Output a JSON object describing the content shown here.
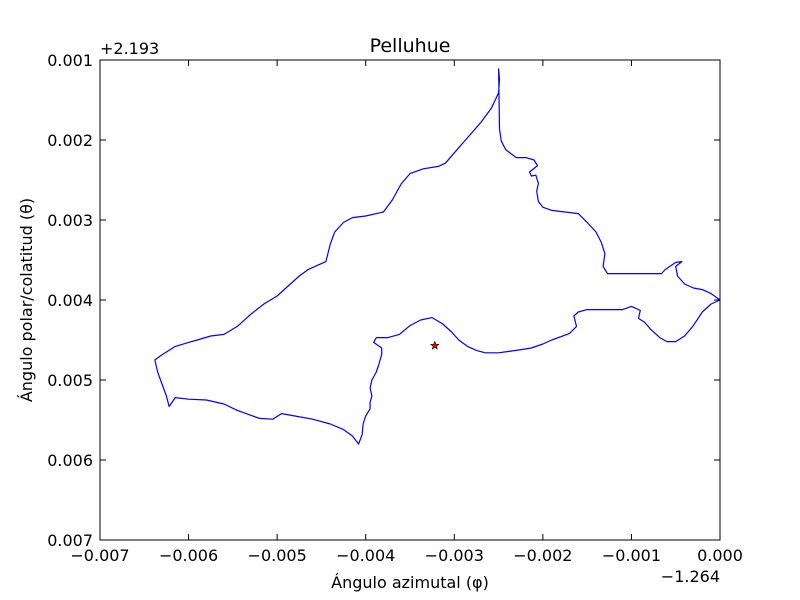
{
  "chart_data": {
    "type": "line",
    "title": "Pelluhue",
    "xlabel": "Ángulo azimutal (φ)",
    "ylabel": "Ángulo polar/colatitud (θ)",
    "x_offset_label": "−1.264",
    "y_offset_label": "+2.193",
    "xlim": [
      -0.007,
      0.0
    ],
    "ylim": [
      0.001,
      0.007
    ],
    "y_inverted": true,
    "grid": false,
    "x_ticks": [
      -0.007,
      -0.006,
      -0.005,
      -0.004,
      -0.003,
      -0.002,
      -0.001,
      0.0
    ],
    "x_tick_labels": [
      "−0.007",
      "−0.006",
      "−0.005",
      "−0.004",
      "−0.003",
      "−0.002",
      "−0.001",
      "0.000"
    ],
    "y_ticks": [
      0.001,
      0.002,
      0.003,
      0.004,
      0.005,
      0.006,
      0.007
    ],
    "y_tick_labels": [
      "0.001",
      "0.002",
      "0.003",
      "0.004",
      "0.005",
      "0.006",
      "0.007"
    ],
    "series": [
      {
        "color": "#0000ff",
        "closed": true,
        "points": [
          [
            -0.00249,
            0.00186
          ],
          [
            -0.00247,
            0.00201
          ],
          [
            -0.00242,
            0.00212
          ],
          [
            -0.0023,
            0.00222
          ],
          [
            -0.00219,
            0.00222
          ],
          [
            -0.0021,
            0.00225
          ],
          [
            -0.00206,
            0.00232
          ],
          [
            -0.00215,
            0.0024
          ],
          [
            -0.00213,
            0.00245
          ],
          [
            -0.00208,
            0.00244
          ],
          [
            -0.00205,
            0.00254
          ],
          [
            -0.00207,
            0.00264
          ],
          [
            -0.00205,
            0.00277
          ],
          [
            -0.002,
            0.00284
          ],
          [
            -0.0019,
            0.00288
          ],
          [
            -0.00175,
            0.0029
          ],
          [
            -0.0016,
            0.00292
          ],
          [
            -0.0015,
            0.00303
          ],
          [
            -0.0014,
            0.00315
          ],
          [
            -0.00134,
            0.00328
          ],
          [
            -0.0013,
            0.00342
          ],
          [
            -0.00132,
            0.00358
          ],
          [
            -0.00127,
            0.00367
          ],
          [
            -0.001,
            0.00367
          ],
          [
            -0.0008,
            0.00367
          ],
          [
            -0.00066,
            0.00367
          ],
          [
            -0.00062,
            0.00362
          ],
          [
            -0.0005,
            0.00353
          ],
          [
            -0.00043,
            0.00352
          ],
          [
            -0.0005,
            0.00358
          ],
          [
            -0.00048,
            0.0037
          ],
          [
            -0.0004,
            0.0038
          ],
          [
            -0.0003,
            0.00385
          ],
          [
            -0.0002,
            0.00387
          ],
          [
            -0.0001,
            0.00392
          ],
          [
            0.0,
            0.004
          ],
          [
            -0.0001,
            0.00405
          ],
          [
            -0.0002,
            0.00415
          ],
          [
            -0.0003,
            0.00432
          ],
          [
            -0.0004,
            0.00445
          ],
          [
            -0.0005,
            0.00452
          ],
          [
            -0.0006,
            0.00452
          ],
          [
            -0.00068,
            0.00447
          ],
          [
            -0.00078,
            0.00437
          ],
          [
            -0.00085,
            0.00428
          ],
          [
            -0.00092,
            0.00423
          ],
          [
            -0.0009,
            0.00413
          ],
          [
            -0.001,
            0.00408
          ],
          [
            -0.0011,
            0.00412
          ],
          [
            -0.00125,
            0.00412
          ],
          [
            -0.00135,
            0.00412
          ],
          [
            -0.0015,
            0.00412
          ],
          [
            -0.0016,
            0.00415
          ],
          [
            -0.00165,
            0.0042
          ],
          [
            -0.00162,
            0.00433
          ],
          [
            -0.0017,
            0.00442
          ],
          [
            -0.0019,
            0.0045
          ],
          [
            -0.002,
            0.00455
          ],
          [
            -0.00213,
            0.0046
          ],
          [
            -0.0023,
            0.00463
          ],
          [
            -0.0025,
            0.00466
          ],
          [
            -0.00265,
            0.00466
          ],
          [
            -0.00275,
            0.00463
          ],
          [
            -0.00285,
            0.00458
          ],
          [
            -0.00295,
            0.0045
          ],
          [
            -0.00303,
            0.0044
          ],
          [
            -0.00313,
            0.0043
          ],
          [
            -0.00325,
            0.00422
          ],
          [
            -0.00338,
            0.00425
          ],
          [
            -0.0035,
            0.00432
          ],
          [
            -0.00362,
            0.00443
          ],
          [
            -0.00375,
            0.00447
          ],
          [
            -0.00388,
            0.00447
          ],
          [
            -0.00391,
            0.00453
          ],
          [
            -0.00382,
            0.0046
          ],
          [
            -0.00382,
            0.00468
          ],
          [
            -0.00385,
            0.0048
          ],
          [
            -0.00388,
            0.0049
          ],
          [
            -0.00393,
            0.005
          ],
          [
            -0.00395,
            0.0051
          ],
          [
            -0.00393,
            0.0052
          ],
          [
            -0.00395,
            0.00528
          ],
          [
            -0.00395,
            0.00536
          ],
          [
            -0.004,
            0.00545
          ],
          [
            -0.00403,
            0.00555
          ],
          [
            -0.00404,
            0.00568
          ],
          [
            -0.00408,
            0.0058
          ],
          [
            -0.00415,
            0.0057
          ],
          [
            -0.00425,
            0.00562
          ],
          [
            -0.0044,
            0.00555
          ],
          [
            -0.0046,
            0.00549
          ],
          [
            -0.0048,
            0.00545
          ],
          [
            -0.00495,
            0.00542
          ],
          [
            -0.00505,
            0.00549
          ],
          [
            -0.0052,
            0.00548
          ],
          [
            -0.0053,
            0.00544
          ],
          [
            -0.00545,
            0.00538
          ],
          [
            -0.0056,
            0.0053
          ],
          [
            -0.0058,
            0.00525
          ],
          [
            -0.006,
            0.00524
          ],
          [
            -0.00615,
            0.00522
          ],
          [
            -0.0062,
            0.0053
          ],
          [
            -0.00622,
            0.00533
          ],
          [
            -0.00625,
            0.0052
          ],
          [
            -0.0063,
            0.00505
          ],
          [
            -0.00635,
            0.0049
          ],
          [
            -0.00638,
            0.00475
          ],
          [
            -0.00632,
            0.0047
          ],
          [
            -0.00625,
            0.00465
          ],
          [
            -0.00615,
            0.00458
          ],
          [
            -0.006,
            0.00453
          ],
          [
            -0.0059,
            0.0045
          ],
          [
            -0.00575,
            0.00445
          ],
          [
            -0.0056,
            0.00443
          ],
          [
            -0.00545,
            0.00433
          ],
          [
            -0.0053,
            0.00418
          ],
          [
            -0.00515,
            0.00405
          ],
          [
            -0.005,
            0.00395
          ],
          [
            -0.00485,
            0.0038
          ],
          [
            -0.00475,
            0.0037
          ],
          [
            -0.00465,
            0.00362
          ],
          [
            -0.00445,
            0.00352
          ],
          [
            -0.0044,
            0.0033
          ],
          [
            -0.00435,
            0.00315
          ],
          [
            -0.00425,
            0.00303
          ],
          [
            -0.00415,
            0.00297
          ],
          [
            -0.004,
            0.00295
          ],
          [
            -0.0038,
            0.0029
          ],
          [
            -0.0037,
            0.00275
          ],
          [
            -0.0036,
            0.00255
          ],
          [
            -0.0035,
            0.00242
          ],
          [
            -0.00335,
            0.00236
          ],
          [
            -0.00318,
            0.00233
          ],
          [
            -0.0031,
            0.00229
          ],
          [
            -0.003,
            0.00216
          ],
          [
            -0.00285,
            0.00197
          ],
          [
            -0.0027,
            0.00178
          ],
          [
            -0.00258,
            0.0016
          ],
          [
            -0.0025,
            0.00141
          ],
          [
            -0.00249,
            0.00124
          ],
          [
            -0.0025,
            0.00111
          ],
          [
            -0.00249,
            0.00186
          ]
        ]
      }
    ],
    "marker": {
      "x": -0.00322,
      "y": 0.00457,
      "shape": "star",
      "color": "#ff0000"
    }
  }
}
